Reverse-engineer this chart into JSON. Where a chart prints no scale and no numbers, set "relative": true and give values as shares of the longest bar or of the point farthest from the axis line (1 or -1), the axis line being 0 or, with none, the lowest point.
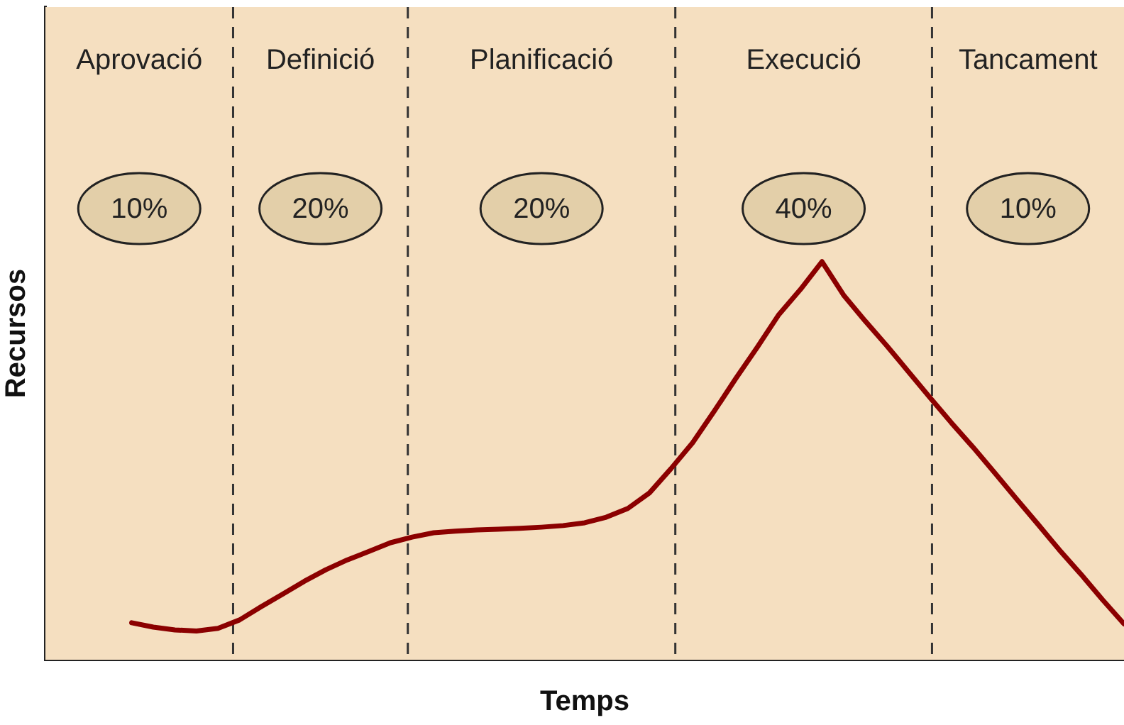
{
  "chart_data": {
    "type": "line",
    "relative": true,
    "xlabel": "Temps",
    "ylabel": "Recursos",
    "legend": false,
    "grid": "x",
    "marker": "none",
    "line_style": "solid",
    "categories": [
      null,
      null,
      null,
      null,
      null,
      null,
      null,
      null,
      null,
      null,
      null,
      null,
      null,
      null,
      null,
      null,
      null,
      null,
      null,
      null,
      null,
      null,
      null,
      null,
      null,
      null,
      null,
      null,
      null,
      null,
      null,
      null,
      null,
      null,
      null,
      null,
      null,
      null,
      null,
      null,
      null,
      null,
      null,
      null,
      null,
      null,
      null,
      null,
      null,
      null,
      null
    ],
    "series": [
      {
        "color": "#8b0000",
        "values": [
          null,
          null,
          null,
          null,
          0.093,
          0.082,
          0.075,
          0.072,
          0.079,
          0.1,
          0.133,
          0.165,
          0.197,
          0.226,
          0.251,
          0.272,
          0.294,
          0.308,
          0.319,
          0.323,
          0.326,
          0.328,
          0.33,
          0.333,
          0.337,
          0.344,
          0.358,
          0.38,
          0.419,
          0.48,
          0.545,
          0.624,
          0.706,
          0.785,
          0.867,
          0.93,
          1,
          0.916,
          0.851,
          0.789,
          0.724,
          0.659,
          0.595,
          0.534,
          0.47,
          0.405,
          0.341,
          0.276,
          0.215,
          0.151,
          0.09
        ]
      }
    ],
    "annotations": [
      "Aprovació",
      "Definició",
      "Planificació",
      "Execució",
      "Tancament",
      "10%",
      "20%",
      "20%",
      "40%",
      "10%"
    ]
  }
}
